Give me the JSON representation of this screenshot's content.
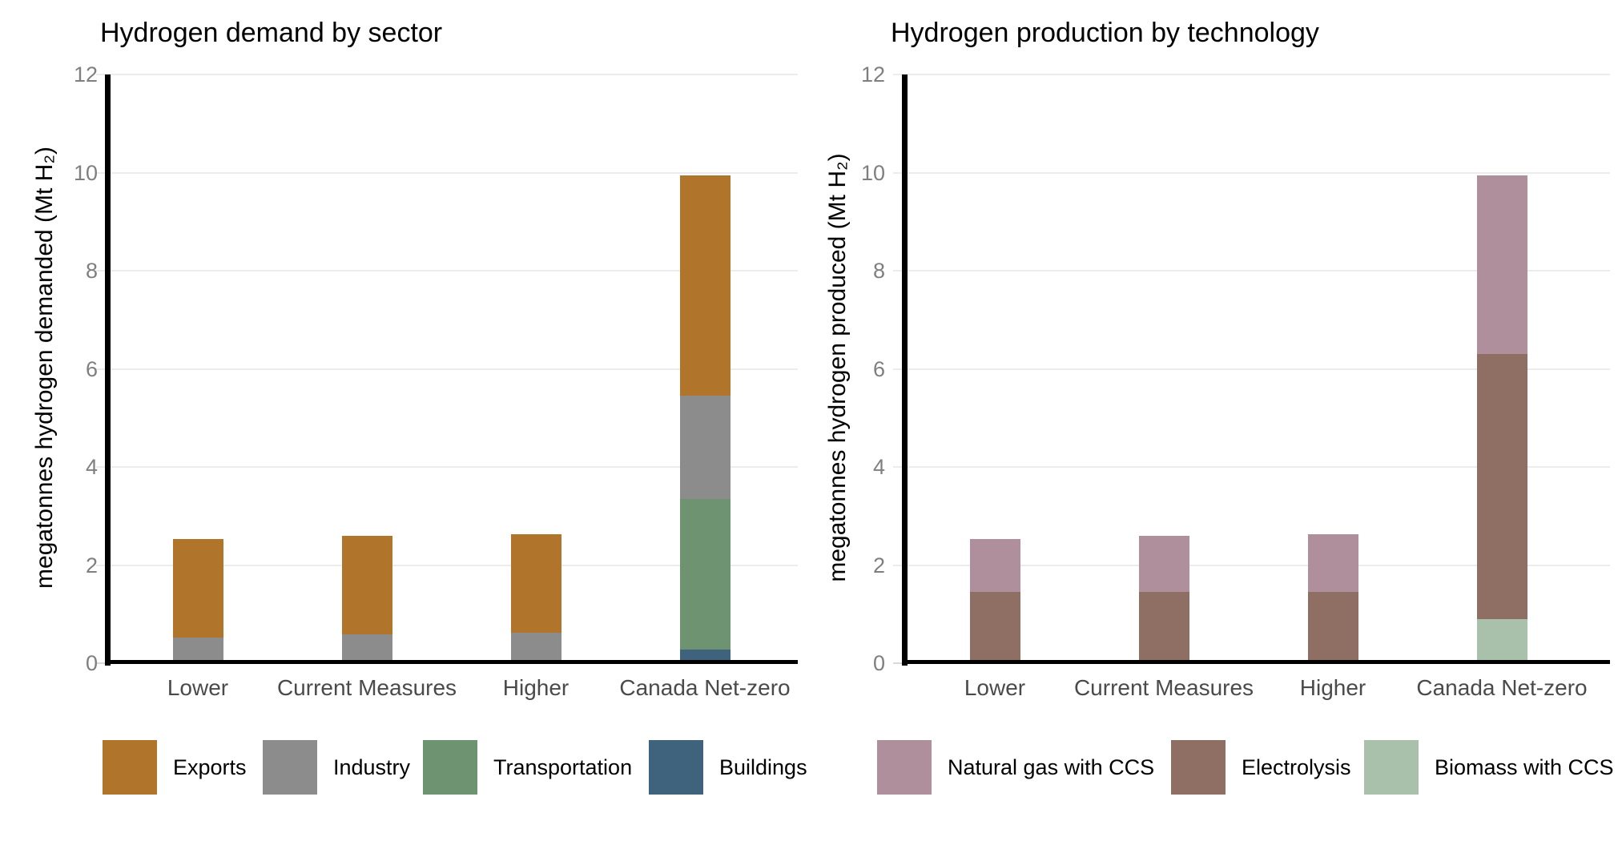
{
  "page": {
    "background": "#ffffff"
  },
  "colors": {
    "grid": "#ececec",
    "axis": "#000000",
    "y_tick_label": "#7f7f7f",
    "x_tick_label": "#4a4a4a",
    "title_text": "#000000"
  },
  "chart_data": [
    {
      "type": "bar",
      "stacked": true,
      "title": "Hydrogen demand by sector",
      "xlabel": "",
      "ylabel": "megatonnes hydrogen demanded (Mt H₂)",
      "ylim": [
        0,
        12
      ],
      "y_ticks": [
        0,
        2,
        4,
        6,
        8,
        10,
        12
      ],
      "grid": true,
      "legend_position": "bottom",
      "categories": [
        "Lower",
        "Current Measures",
        "Higher",
        "Canada Net-zero"
      ],
      "series": [
        {
          "name": "Buildings",
          "color": "#3f637c",
          "values": [
            0,
            0,
            0,
            0.27
          ]
        },
        {
          "name": "Transportation",
          "color": "#6d9370",
          "values": [
            0,
            0,
            0,
            3.07
          ]
        },
        {
          "name": "Industry",
          "color": "#8c8c8c",
          "values": [
            0.53,
            0.58,
            0.62,
            2.12
          ]
        },
        {
          "name": "Exports",
          "color": "#b0752b",
          "values": [
            2.0,
            2.02,
            2.01,
            4.48
          ]
        }
      ],
      "totals": [
        2.53,
        2.6,
        2.63,
        9.94
      ],
      "legend": [
        {
          "label": "Exports",
          "color": "#b0752b"
        },
        {
          "label": "Industry",
          "color": "#8c8c8c"
        },
        {
          "label": "Transportation",
          "color": "#6d9370"
        },
        {
          "label": "Buildings",
          "color": "#3f637c"
        }
      ]
    },
    {
      "type": "bar",
      "stacked": true,
      "title": "Hydrogen production by technology",
      "xlabel": "",
      "ylabel": "megatonnes hydrogen produced (Mt H₂)",
      "ylim": [
        0,
        12
      ],
      "y_ticks": [
        0,
        2,
        4,
        6,
        8,
        10,
        12
      ],
      "grid": true,
      "legend_position": "bottom",
      "categories": [
        "Lower",
        "Current Measures",
        "Higher",
        "Canada Net-zero"
      ],
      "series": [
        {
          "name": "Biomass with CCS",
          "color": "#a9c0ab",
          "values": [
            0,
            0,
            0,
            0.9
          ]
        },
        {
          "name": "Electrolysis",
          "color": "#8f6f64",
          "values": [
            1.46,
            1.46,
            1.46,
            5.41
          ]
        },
        {
          "name": "Natural gas with CCS",
          "color": "#ae8f9b",
          "values": [
            1.07,
            1.14,
            1.17,
            3.63
          ]
        }
      ],
      "totals": [
        2.53,
        2.6,
        2.63,
        9.94
      ],
      "legend": [
        {
          "label": "Natural gas with CCS",
          "color": "#ae8f9b"
        },
        {
          "label": "Electrolysis",
          "color": "#8f6f64"
        },
        {
          "label": "Biomass with CCS",
          "color": "#a9c0ab"
        }
      ]
    }
  ]
}
